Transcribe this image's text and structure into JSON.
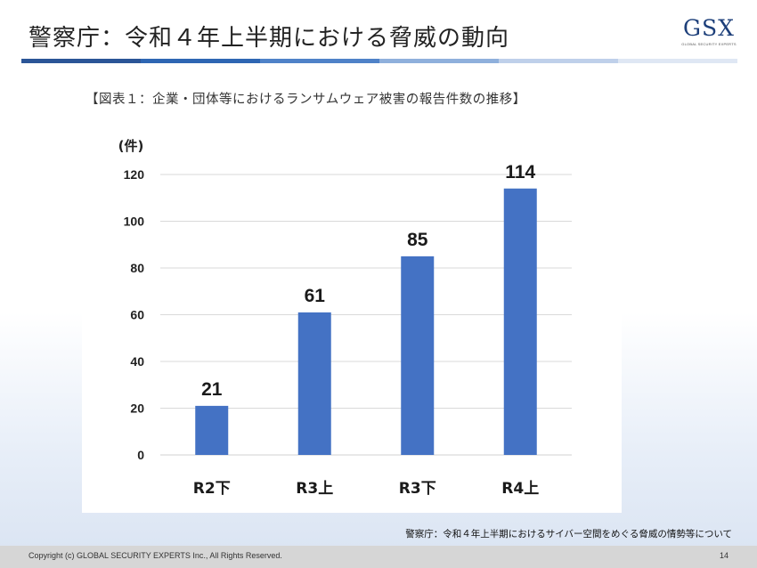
{
  "slide": {
    "title": "警察庁：令和４年上半期における脅威の動向",
    "logo_main": "GSX",
    "logo_sub": "GLOBAL SECURITY EXPERTS",
    "title_bar_colors": [
      "#2b5597",
      "#2e66b3",
      "#4f82c8",
      "#8fb0dc",
      "#bfd0ea",
      "#dfe7f4"
    ]
  },
  "chart_data": {
    "type": "bar",
    "title": "【図表１：企業・団体等におけるランサムウェア被害の報告件数の推移】",
    "ylabel": "(件)",
    "categories": [
      "R2下",
      "R3上",
      "R3下",
      "R4上"
    ],
    "values": [
      21,
      61,
      85,
      114
    ],
    "ylim": [
      0,
      120
    ],
    "yticks": [
      "0",
      "20",
      "40",
      "60",
      "80",
      "100",
      "120"
    ],
    "bar_color": "#4472c4",
    "grid": true
  },
  "source": "警察庁：令和４年上半期におけるサイバー空間をめぐる脅威の情勢等について",
  "footer": {
    "copyright": "Copyright (c) GLOBAL SECURITY EXPERTS Inc., All Rights Reserved.",
    "page_number": "14"
  }
}
